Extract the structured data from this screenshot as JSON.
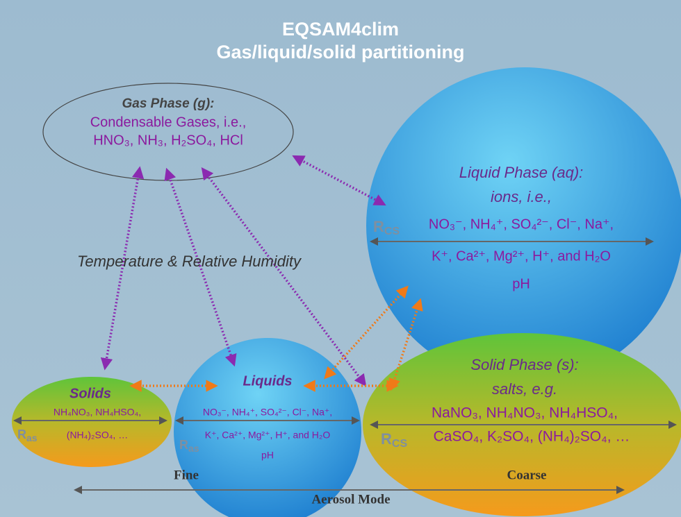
{
  "header": {
    "title": [
      "EQSAM4clim",
      "Gas/liquid/solid partitioning"
    ]
  },
  "nodes": [
    {
      "title": "Gas Phase (g):",
      "lines": [
        "Condensable Gases, i.e.,",
        "HNO₃, NH₃, H₂SO₄, HCl"
      ]
    },
    {
      "title": "Liquid Phase (aq):",
      "lines": [
        "ions, i.e.,",
        "NO₃⁻, NH₄⁺, SO₄²⁻, Cl⁻, Na⁺,",
        "K⁺, Ca²⁺, Mg²⁺, H⁺, and H₂O",
        "pH"
      ],
      "ratio": {
        "base": "R",
        "sub": "CS"
      }
    },
    {
      "title": "Solids",
      "lines": [
        "NH₄NO₃, NH₄HSO₄,",
        "(NH₄)₂SO₄, …"
      ],
      "ratio": {
        "base": "R",
        "sub": "as"
      }
    },
    {
      "title": "Liquids",
      "lines": [
        "NO₃⁻, NH₄⁺, SO₄²⁻, Cl⁻, Na⁺,",
        "K⁺, Ca²⁺, Mg²⁺, H⁺, and  H₂O",
        "pH"
      ],
      "ratio": {
        "base": "R",
        "sub": "as"
      }
    },
    {
      "title": "Solid Phase (s):",
      "lines": [
        "salts, e.g.",
        "NaNO₃, NH₄NO₃, NH₄HSO₄,",
        "CaSO₄, K₂SO₄, (NH₄)₂SO₄, …"
      ],
      "ratio": {
        "base": "R",
        "sub": "CS"
      }
    }
  ],
  "annotation": "Temperature & Relative Humidity",
  "axis": {
    "left": "Fine",
    "right": "Coarse",
    "label": "Aerosol Mode"
  }
}
